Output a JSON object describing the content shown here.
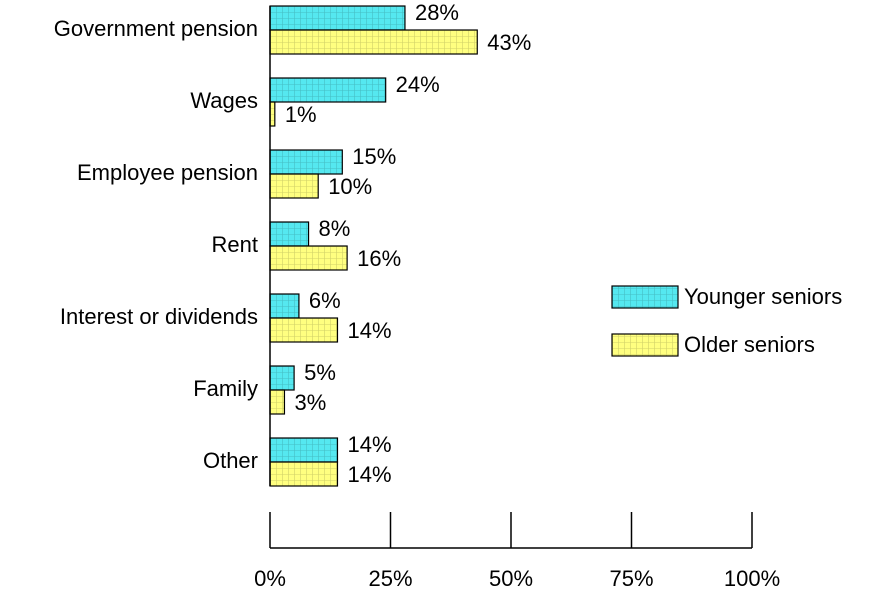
{
  "chart_data": {
    "type": "bar",
    "orientation": "horizontal",
    "categories": [
      "Government pension",
      "Wages",
      "Employee pension",
      "Rent",
      "Interest or dividends",
      "Family",
      "Other"
    ],
    "series": [
      {
        "name": "Younger seniors",
        "color": "#55e8f0",
        "values": [
          28,
          24,
          15,
          8,
          6,
          5,
          14
        ],
        "value_labels": [
          "28%",
          "24%",
          "15%",
          "8%",
          "6%",
          "5%",
          "14%"
        ]
      },
      {
        "name": "Older seniors",
        "color": "#ffff80",
        "values": [
          43,
          1,
          10,
          16,
          14,
          3,
          14
        ],
        "value_labels": [
          "43%",
          "1%",
          "10%",
          "16%",
          "14%",
          "3%",
          "14%"
        ]
      }
    ],
    "xlim": [
      0,
      100
    ],
    "xticks": [
      {
        "value": 0,
        "label": "0%"
      },
      {
        "value": 25,
        "label": "25%"
      },
      {
        "value": 50,
        "label": "50%"
      },
      {
        "value": 75,
        "label": "75%"
      },
      {
        "value": 100,
        "label": "100%"
      }
    ],
    "legend": "right"
  }
}
